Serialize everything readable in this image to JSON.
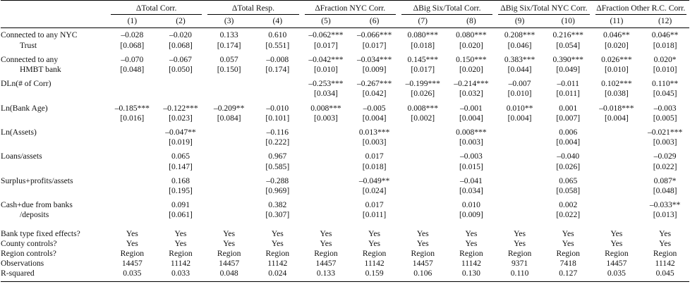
{
  "table": {
    "groups": [
      "ΔTotal Corr.",
      "ΔTotal Resp.",
      "ΔFraction NYC Corr.",
      "ΔBig Six/Total Corr.",
      "ΔBig Six/Total NYC Corr.",
      "ΔFraction Other R.C. Corr."
    ],
    "numbers": [
      "(1)",
      "(2)",
      "(3)",
      "(4)",
      "(5)",
      "(6)",
      "(7)",
      "(8)",
      "(9)",
      "(10)",
      "(11)",
      "(12)"
    ],
    "rows": [
      {
        "label": [
          "Connected to any NYC",
          "Trust"
        ],
        "coef": [
          "–0.028",
          "–0.020",
          "0.133",
          "0.610",
          "–0.062***",
          "–0.066***",
          "0.080***",
          "0.080***",
          "0.208***",
          "0.216***",
          "0.046**",
          "0.046**"
        ],
        "se": [
          "[0.068]",
          "[0.068]",
          "[0.174]",
          "[0.551]",
          "[0.017]",
          "[0.017]",
          "[0.018]",
          "[0.020]",
          "[0.046]",
          "[0.054]",
          "[0.020]",
          "[0.018]"
        ]
      },
      {
        "label": [
          "Connected to any",
          "HMBT bank"
        ],
        "coef": [
          "–0.070",
          "–0.067",
          "0.057",
          "–0.008",
          "–0.042***",
          "–0.034***",
          "0.145***",
          "0.150***",
          "0.383***",
          "0.390***",
          "0.026***",
          "0.020*"
        ],
        "se": [
          "[0.048]",
          "[0.050]",
          "[0.150]",
          "[0.174]",
          "[0.010]",
          "[0.009]",
          "[0.017]",
          "[0.020]",
          "[0.044]",
          "[0.049]",
          "[0.010]",
          "[0.010]"
        ]
      },
      {
        "label": [
          "DLn(# of Corr)"
        ],
        "coef": [
          null,
          null,
          null,
          null,
          "–0.253***",
          "–0.267***",
          "–0.199***",
          "–0.214***",
          "–0.007",
          "–0.011",
          "0.102***",
          "0.110**"
        ],
        "se": [
          null,
          null,
          null,
          null,
          "[0.034]",
          "[0.042]",
          "[0.026]",
          "[0.032]",
          "[0.010]",
          "[0.011]",
          "[0.038]",
          "[0.045]"
        ]
      },
      {
        "label": [
          "Ln(Bank Age)"
        ],
        "coef": [
          "–0.185***",
          "–0.122***",
          "–0.209**",
          "–0.010",
          "0.008***",
          "–0.005",
          "0.008***",
          "–0.001",
          "0.010**",
          "0.001",
          "–0.018***",
          "–0.003"
        ],
        "se": [
          "[0.016]",
          "[0.023]",
          "[0.084]",
          "[0.101]",
          "[0.003]",
          "[0.004]",
          "[0.002]",
          "[0.004]",
          "[0.004]",
          "[0.007]",
          "[0.004]",
          "[0.005]"
        ]
      },
      {
        "label": [
          "Ln(Assets)"
        ],
        "coef": [
          null,
          "–0.047**",
          null,
          "–0.116",
          null,
          "0.013***",
          null,
          "0.008***",
          null,
          "0.006",
          null,
          "–0.021***"
        ],
        "se": [
          null,
          "[0.019]",
          null,
          "[0.222]",
          null,
          "[0.003]",
          null,
          "[0.003]",
          null,
          "[0.004]",
          null,
          "[0.003]"
        ]
      },
      {
        "label": [
          "Loans/assets"
        ],
        "coef": [
          null,
          "0.065",
          null,
          "0.967",
          null,
          "0.017",
          null,
          "–0.003",
          null,
          "–0.040",
          null,
          "–0.029"
        ],
        "se": [
          null,
          "[0.147]",
          null,
          "[0.585]",
          null,
          "[0.018]",
          null,
          "[0.015]",
          null,
          "[0.026]",
          null,
          "[0.022]"
        ]
      },
      {
        "label": [
          "Surplus+profits/assets"
        ],
        "coef": [
          null,
          "0.168",
          null,
          "–0.288",
          null,
          "–0.049**",
          null,
          "–0.041",
          null,
          "0.065",
          null,
          "0.087*"
        ],
        "se": [
          null,
          "[0.195]",
          null,
          "[0.969]",
          null,
          "[0.024]",
          null,
          "[0.034]",
          null,
          "[0.058]",
          null,
          "[0.048]"
        ]
      },
      {
        "label": [
          "Cash+due from banks",
          "/deposits"
        ],
        "coef": [
          null,
          "0.091",
          null,
          "0.382",
          null,
          "0.017",
          null,
          "0.010",
          null,
          "0.002",
          null,
          "–0.033**"
        ],
        "se": [
          null,
          "[0.061]",
          null,
          "[0.307]",
          null,
          "[0.011]",
          null,
          "[0.009]",
          null,
          "[0.022]",
          null,
          "[0.013]"
        ]
      }
    ],
    "stats": [
      {
        "label": "Bank type fixed effects?",
        "values": [
          "Yes",
          "Yes",
          "Yes",
          "Yes",
          "Yes",
          "Yes",
          "Yes",
          "Yes",
          "Yes",
          "Yes",
          "Yes",
          "Yes"
        ]
      },
      {
        "label": "County controls?",
        "values": [
          "Yes",
          "Yes",
          "Yes",
          "Yes",
          "Yes",
          "Yes",
          "Yes",
          "Yes",
          "Yes",
          "Yes",
          "Yes",
          "Yes"
        ]
      },
      {
        "label": "Region controls?",
        "values": [
          "Region",
          "Region",
          "Region",
          "Region",
          "Region",
          "Region",
          "Region",
          "Region",
          "Region",
          "Region",
          "Region",
          "Region"
        ]
      },
      {
        "label": "Observations",
        "values": [
          "14457",
          "11142",
          "14457",
          "11142",
          "14457",
          "11142",
          "14457",
          "11142",
          "9371",
          "7418",
          "14457",
          "11142"
        ]
      },
      {
        "label": "R-squared",
        "values": [
          "0.035",
          "0.033",
          "0.048",
          "0.024",
          "0.133",
          "0.159",
          "0.106",
          "0.130",
          "0.110",
          "0.127",
          "0.035",
          "0.045"
        ]
      }
    ]
  }
}
